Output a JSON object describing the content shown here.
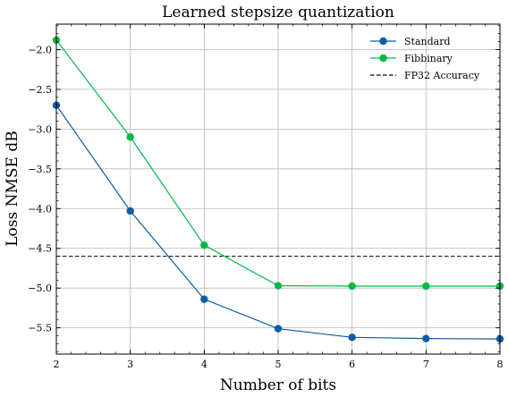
{
  "chart_data": {
    "type": "line",
    "title": "Learned stepsize quantization",
    "xlabel": "Number of bits",
    "ylabel": "Loss NMSE dB",
    "x": [
      2,
      3,
      4,
      5,
      6,
      7,
      8
    ],
    "xlim": [
      2,
      8
    ],
    "ylim": [
      -5.83,
      -1.68
    ],
    "xticks": [
      "2",
      "3",
      "4",
      "5",
      "6",
      "7",
      "8"
    ],
    "yticks": [
      "−2.0",
      "−2.5",
      "−3.0",
      "−3.5",
      "−4.0",
      "−4.5",
      "−5.0",
      "−5.5"
    ],
    "ytick_values": [
      -2.0,
      -2.5,
      -3.0,
      -3.5,
      -4.0,
      -4.5,
      -5.0,
      -5.5
    ],
    "grid": true,
    "legend_position": "top-right",
    "series": [
      {
        "name": "Standard",
        "values": [
          -2.7,
          -4.03,
          -5.14,
          -5.51,
          -5.62,
          -5.635,
          -5.64
        ],
        "color": "#0c5da5",
        "marker": "circle",
        "style": "solid"
      },
      {
        "name": "Fibbinary",
        "values": [
          -1.88,
          -3.1,
          -4.46,
          -4.97,
          -4.975,
          -4.975,
          -4.975
        ],
        "color": "#00b945",
        "marker": "circle",
        "style": "solid"
      }
    ],
    "reference_lines": [
      {
        "name": "FP32 Accuracy",
        "y": -4.6,
        "color": "#000000",
        "style": "dashed"
      }
    ]
  }
}
